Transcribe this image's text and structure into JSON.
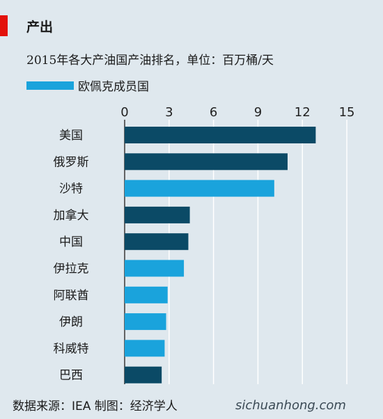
{
  "header": {
    "section_label": "产出",
    "subtitle": "2015年各大产油国产油排名，单位：百万桶/天"
  },
  "legend": {
    "label": "欧佩克成员国",
    "color": "#1aa3dc"
  },
  "colors": {
    "non_opec": "#0b4a66",
    "opec": "#1aa3dc",
    "background": "#dfe8ee",
    "gridline": "#ffffff",
    "accent": "#e3120b"
  },
  "chart_data": {
    "type": "bar",
    "orientation": "horizontal",
    "title": "2015年各大产油国产油排名，单位：百万桶/天",
    "xlim": [
      0,
      15
    ],
    "x_ticks": [
      "0",
      "3",
      "6",
      "9",
      "12",
      "15"
    ],
    "grid": true,
    "legend_position": "top-left",
    "categories": [
      "美国",
      "俄罗斯",
      "沙特",
      "加拿大",
      "中国",
      "伊拉克",
      "阿联酋",
      "伊朗",
      "科威特",
      "巴西"
    ],
    "values": [
      12.9,
      11.0,
      10.1,
      4.4,
      4.3,
      4.0,
      2.9,
      2.8,
      2.7,
      2.5
    ],
    "opec_member": [
      false,
      false,
      true,
      false,
      false,
      true,
      true,
      true,
      true,
      false
    ]
  },
  "footer": {
    "source": "数据来源：IEA 制图：经济学人",
    "watermark": "sichuanhong.com"
  }
}
